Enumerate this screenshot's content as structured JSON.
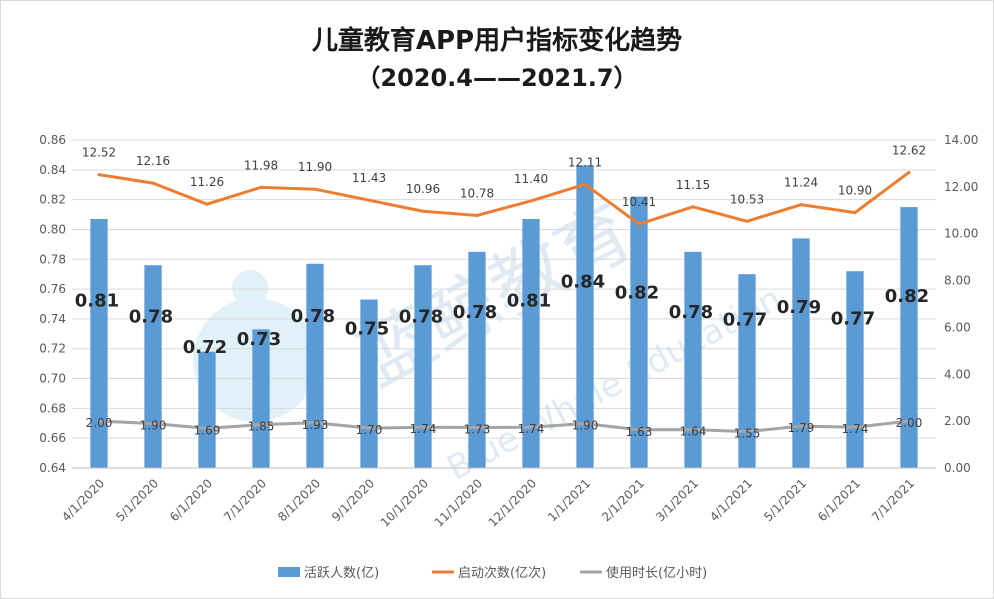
{
  "chart_data": {
    "type": "bar+line",
    "title": "儿童教育APP用户指标变化趋势",
    "subtitle": "（2020.4——2021.7）",
    "categories": [
      "4/1/2020",
      "5/1/2020",
      "6/1/2020",
      "7/1/2020",
      "8/1/2020",
      "9/1/2020",
      "10/1/2020",
      "11/1/2020",
      "12/1/2020",
      "1/1/2021",
      "2/1/2021",
      "3/1/2021",
      "4/1/2021",
      "5/1/2021",
      "6/1/2021",
      "7/1/2021"
    ],
    "y_left": {
      "min": 0.64,
      "max": 0.86,
      "step": 0.02,
      "ticks": [
        "0.64",
        "0.66",
        "0.68",
        "0.70",
        "0.72",
        "0.74",
        "0.76",
        "0.78",
        "0.80",
        "0.82",
        "0.84",
        "0.86"
      ]
    },
    "y_right": {
      "min": 0,
      "max": 14,
      "step": 2,
      "ticks": [
        "0.00",
        "2.00",
        "4.00",
        "6.00",
        "8.00",
        "10.00",
        "12.00",
        "14.00"
      ]
    },
    "series": [
      {
        "name": "活跃人数(亿)",
        "kind": "bar",
        "axis": "left",
        "color": "#5b9bd5",
        "values": [
          0.807,
          0.776,
          0.718,
          0.733,
          0.777,
          0.753,
          0.776,
          0.785,
          0.807,
          0.843,
          0.822,
          0.785,
          0.77,
          0.794,
          0.772,
          0.815
        ],
        "labels": [
          "0.81",
          "0.78",
          "0.72",
          "0.73",
          "0.78",
          "0.75",
          "0.78",
          "0.78",
          "0.81",
          "0.84",
          "0.82",
          "0.78",
          "0.77",
          "0.79",
          "0.77",
          "0.82"
        ]
      },
      {
        "name": "启动次数(亿次)",
        "kind": "line",
        "axis": "right",
        "color": "#ed7d31",
        "values": [
          12.52,
          12.16,
          11.26,
          11.98,
          11.9,
          11.43,
          10.96,
          10.78,
          11.4,
          12.11,
          10.41,
          11.15,
          10.53,
          11.24,
          10.9,
          12.62
        ],
        "labels": [
          "12.52",
          "12.16",
          "11.26",
          "11.98",
          "11.90",
          "11.43",
          "10.96",
          "10.78",
          "11.40",
          "12.11",
          "10.41",
          "11.15",
          "10.53",
          "11.24",
          "10.90",
          "12.62"
        ]
      },
      {
        "name": "使用时长(亿小时)",
        "kind": "line",
        "axis": "right",
        "color": "#a5a5a5",
        "values": [
          2.0,
          1.9,
          1.69,
          1.85,
          1.93,
          1.7,
          1.74,
          1.73,
          1.74,
          1.9,
          1.63,
          1.64,
          1.55,
          1.79,
          1.74,
          2.0
        ],
        "labels": [
          "2.00",
          "1.90",
          "1.69",
          "1.85",
          "1.93",
          "1.70",
          "1.74",
          "1.73",
          "1.74",
          "1.90",
          "1.63",
          "1.64",
          "1.55",
          "1.79",
          "1.74",
          "2.00"
        ]
      }
    ],
    "legend_position": "bottom",
    "grid": true,
    "watermark": {
      "text_cn": "蓝鲸教育",
      "text_en": "Blue Whale Education"
    }
  }
}
